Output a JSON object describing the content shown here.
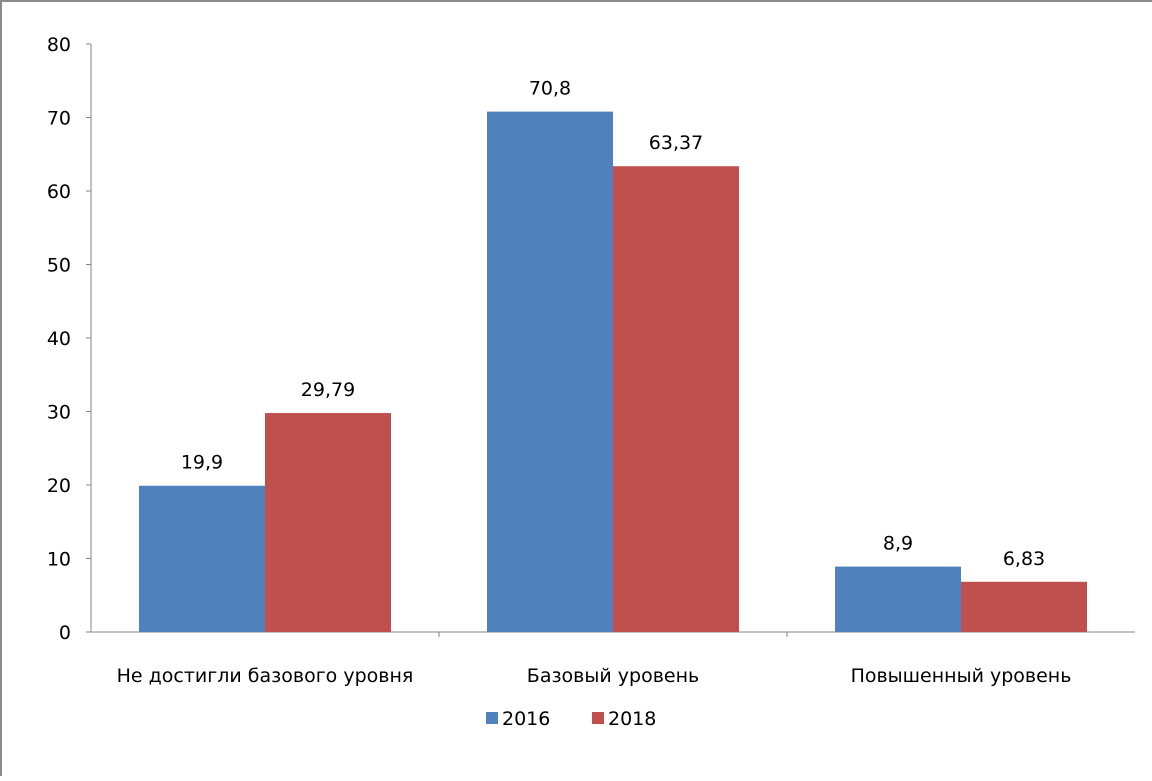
{
  "chart_data": {
    "type": "bar",
    "title": "",
    "xlabel": "",
    "ylabel": "",
    "categories": [
      "Не достигли базового уровня",
      "Базовый уровень",
      "Повышенный уровень"
    ],
    "series": [
      {
        "name": "2016",
        "values": [
          19.9,
          70.8,
          8.9
        ],
        "labels": [
          "19,9",
          "70,8",
          "8,9"
        ],
        "color": "#4f81bd"
      },
      {
        "name": "2018",
        "values": [
          29.79,
          63.37,
          6.83
        ],
        "labels": [
          "29,79",
          "63,37",
          "6,83"
        ],
        "color": "#c0504d"
      }
    ],
    "ylim": [
      0,
      80
    ],
    "yticks": [
      0,
      10,
      20,
      30,
      40,
      50,
      60,
      70,
      80
    ],
    "grid": false,
    "legend_position": "bottom"
  }
}
